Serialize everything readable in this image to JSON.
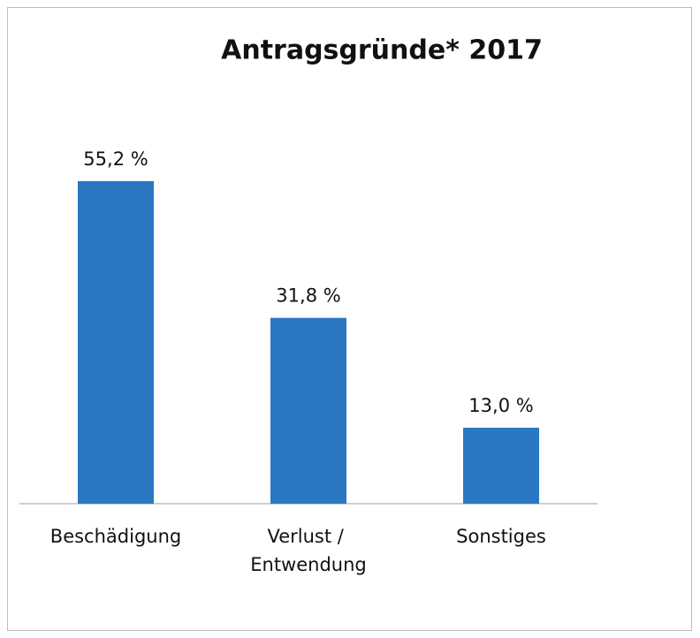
{
  "chart_data": {
    "type": "bar",
    "title": "Antragsgründe* 2017",
    "categories": [
      "Beschädigung",
      "Verlust / Entwendung",
      "Sonstiges"
    ],
    "values": [
      55.2,
      31.8,
      13.0
    ],
    "value_labels": [
      "55,2 %",
      "31,8 %",
      "13,0 %"
    ],
    "color": "#2a78c2"
  }
}
